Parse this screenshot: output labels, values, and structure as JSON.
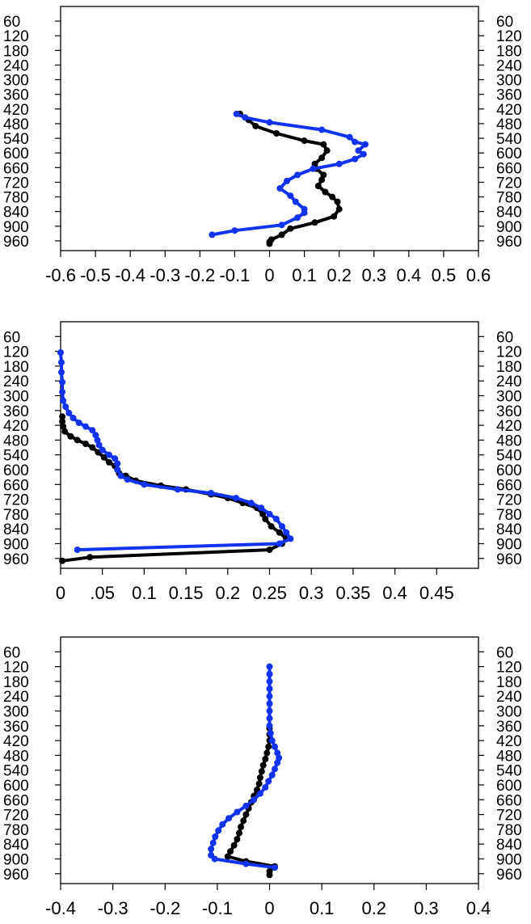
{
  "chart_data": [
    {
      "type": "line",
      "title": "",
      "xlabel": "",
      "ylabel": "",
      "xlim": [
        -0.6,
        0.6
      ],
      "ylim": [
        0,
        1000
      ],
      "y_inverted": true,
      "x_ticks": [
        "-0.6",
        "-0.5",
        "-0.4",
        "-0.3",
        "-0.2",
        "-0.1",
        "0",
        "0.1",
        "0.2",
        "0.3",
        "0.4",
        "0.5",
        "0.6"
      ],
      "x_tick_values": [
        -0.6,
        -0.5,
        -0.4,
        -0.3,
        -0.2,
        -0.1,
        0,
        0.1,
        0.2,
        0.3,
        0.4,
        0.5,
        0.6
      ],
      "y_ticks": [
        "60",
        "120",
        "180",
        "240",
        "300",
        "360",
        "420",
        "480",
        "540",
        "600",
        "660",
        "720",
        "780",
        "840",
        "900",
        "960"
      ],
      "y_tick_values": [
        60,
        120,
        180,
        240,
        300,
        360,
        420,
        480,
        540,
        600,
        660,
        720,
        780,
        840,
        900,
        960
      ],
      "grid": false,
      "series": [
        {
          "color": "#000000",
          "points": [
            [
              -0.085,
              440
            ],
            [
              -0.06,
              465
            ],
            [
              -0.04,
              490
            ],
            [
              0.02,
              520
            ],
            [
              0.1,
              550
            ],
            [
              0.155,
              565
            ],
            [
              0.165,
              590
            ],
            [
              0.15,
              620
            ],
            [
              0.13,
              645
            ],
            [
              0.135,
              665
            ],
            [
              0.155,
              690
            ],
            [
              0.15,
              710
            ],
            [
              0.14,
              735
            ],
            [
              0.16,
              760
            ],
            [
              0.18,
              780
            ],
            [
              0.195,
              800
            ],
            [
              0.2,
              830
            ],
            [
              0.185,
              860
            ],
            [
              0.13,
              885
            ],
            [
              0.06,
              910
            ],
            [
              0.035,
              935
            ],
            [
              0.005,
              955
            ],
            [
              0.0,
              965
            ],
            [
              0.0,
              972
            ]
          ]
        },
        {
          "color": "#1133ee",
          "points": [
            [
              -0.095,
              440
            ],
            [
              -0.07,
              455
            ],
            [
              0.0,
              475
            ],
            [
              0.15,
              505
            ],
            [
              0.23,
              535
            ],
            [
              0.245,
              555
            ],
            [
              0.275,
              565
            ],
            [
              0.255,
              590
            ],
            [
              0.27,
              605
            ],
            [
              0.245,
              625
            ],
            [
              0.2,
              645
            ],
            [
              0.125,
              665
            ],
            [
              0.08,
              690
            ],
            [
              0.05,
              715
            ],
            [
              0.03,
              745
            ],
            [
              0.06,
              775
            ],
            [
              0.075,
              800
            ],
            [
              0.1,
              830
            ],
            [
              0.1,
              845
            ],
            [
              0.08,
              865
            ],
            [
              0.035,
              895
            ],
            [
              -0.1,
              918
            ],
            [
              -0.165,
              935
            ]
          ]
        }
      ]
    },
    {
      "type": "line",
      "title": "",
      "xlabel": "",
      "ylabel": "",
      "xlim": [
        0,
        0.5
      ],
      "ylim": [
        0,
        1000
      ],
      "y_inverted": true,
      "x_ticks": [
        "0",
        ".05",
        "0.1",
        "0.15",
        "0.2",
        "0.25",
        "0.3",
        "0.35",
        "0.4",
        "0.45"
      ],
      "x_tick_values": [
        0,
        0.05,
        0.1,
        0.15,
        0.2,
        0.25,
        0.3,
        0.35,
        0.4,
        0.45
      ],
      "y_ticks": [
        "60",
        "120",
        "180",
        "240",
        "300",
        "360",
        "420",
        "480",
        "540",
        "600",
        "660",
        "720",
        "780",
        "840",
        "900",
        "960"
      ],
      "y_tick_values": [
        60,
        120,
        180,
        240,
        300,
        360,
        420,
        480,
        540,
        600,
        660,
        720,
        780,
        840,
        900,
        960
      ],
      "grid": false,
      "series": [
        {
          "color": "#000000",
          "points": [
            [
              0.002,
              385
            ],
            [
              0.002,
              405
            ],
            [
              0.003,
              425
            ],
            [
              0.005,
              445
            ],
            [
              0.012,
              465
            ],
            [
              0.02,
              480
            ],
            [
              0.03,
              495
            ],
            [
              0.038,
              510
            ],
            [
              0.045,
              530
            ],
            [
              0.052,
              550
            ],
            [
              0.058,
              570
            ],
            [
              0.065,
              585
            ],
            [
              0.068,
              600
            ],
            [
              0.07,
              615
            ],
            [
              0.078,
              625
            ],
            [
              0.09,
              645
            ],
            [
              0.12,
              665
            ],
            [
              0.15,
              680
            ],
            [
              0.18,
              700
            ],
            [
              0.2,
              715
            ],
            [
              0.218,
              735
            ],
            [
              0.235,
              755
            ],
            [
              0.242,
              780
            ],
            [
              0.245,
              800
            ],
            [
              0.252,
              830
            ],
            [
              0.262,
              855
            ],
            [
              0.27,
              880
            ],
            [
              0.265,
              900
            ],
            [
              0.25,
              925
            ],
            [
              0.035,
              955
            ],
            [
              0.002,
              970
            ]
          ]
        },
        {
          "color": "#1133ee",
          "points": [
            [
              0.0,
              125
            ],
            [
              0.001,
              165
            ],
            [
              0.001,
              205
            ],
            [
              0.002,
              245
            ],
            [
              0.002,
              285
            ],
            [
              0.003,
              320
            ],
            [
              0.006,
              345
            ],
            [
              0.01,
              370
            ],
            [
              0.015,
              390
            ],
            [
              0.022,
              410
            ],
            [
              0.03,
              425
            ],
            [
              0.038,
              440
            ],
            [
              0.042,
              460
            ],
            [
              0.044,
              480
            ],
            [
              0.046,
              500
            ],
            [
              0.05,
              520
            ],
            [
              0.058,
              540
            ],
            [
              0.065,
              555
            ],
            [
              0.068,
              575
            ],
            [
              0.068,
              600
            ],
            [
              0.072,
              625
            ],
            [
              0.08,
              640
            ],
            [
              0.1,
              660
            ],
            [
              0.14,
              680
            ],
            [
              0.18,
              695
            ],
            [
              0.21,
              715
            ],
            [
              0.228,
              735
            ],
            [
              0.24,
              755
            ],
            [
              0.25,
              780
            ],
            [
              0.258,
              800
            ],
            [
              0.265,
              830
            ],
            [
              0.27,
              855
            ],
            [
              0.275,
              880
            ],
            [
              0.262,
              900
            ],
            [
              0.02,
              925
            ]
          ]
        }
      ]
    },
    {
      "type": "line",
      "title": "",
      "xlabel": "",
      "ylabel": "",
      "xlim": [
        -0.4,
        0.4
      ],
      "ylim": [
        0,
        1000
      ],
      "y_inverted": true,
      "x_ticks": [
        "-0.4",
        "-0.3",
        "-0.2",
        "-0.1",
        "0",
        "0.1",
        "0.2",
        "0.3",
        "0.4"
      ],
      "x_tick_values": [
        -0.4,
        -0.3,
        -0.2,
        -0.1,
        0,
        0.1,
        0.2,
        0.3,
        0.4
      ],
      "y_ticks": [
        "60",
        "120",
        "180",
        "240",
        "300",
        "360",
        "420",
        "480",
        "540",
        "600",
        "660",
        "720",
        "780",
        "840",
        "900",
        "960"
      ],
      "y_tick_values": [
        60,
        120,
        180,
        240,
        300,
        360,
        420,
        480,
        540,
        600,
        660,
        720,
        780,
        840,
        900,
        960
      ],
      "grid": false,
      "series": [
        {
          "color": "#000000",
          "points": [
            [
              0.0,
              370
            ],
            [
              0.0,
              395
            ],
            [
              0.0,
              420
            ],
            [
              -0.002,
              445
            ],
            [
              -0.005,
              470
            ],
            [
              -0.008,
              495
            ],
            [
              -0.012,
              520
            ],
            [
              -0.015,
              545
            ],
            [
              -0.018,
              570
            ],
            [
              -0.02,
              595
            ],
            [
              -0.024,
              620
            ],
            [
              -0.03,
              645
            ],
            [
              -0.035,
              670
            ],
            [
              -0.04,
              695
            ],
            [
              -0.045,
              720
            ],
            [
              -0.05,
              745
            ],
            [
              -0.055,
              770
            ],
            [
              -0.058,
              795
            ],
            [
              -0.062,
              820
            ],
            [
              -0.068,
              845
            ],
            [
              -0.075,
              870
            ],
            [
              -0.08,
              890
            ],
            [
              -0.045,
              910
            ],
            [
              0.01,
              930
            ],
            [
              0.0,
              950
            ],
            [
              0.0,
              965
            ]
          ]
        },
        {
          "color": "#1133ee",
          "points": [
            [
              0.0,
              120
            ],
            [
              0.0,
              150
            ],
            [
              0.0,
              180
            ],
            [
              0.0,
              210
            ],
            [
              0.0,
              240
            ],
            [
              0.0,
              270
            ],
            [
              0.0,
              300
            ],
            [
              0.0,
              330
            ],
            [
              0.0,
              360
            ],
            [
              0.002,
              390
            ],
            [
              0.005,
              420
            ],
            [
              0.01,
              445
            ],
            [
              0.015,
              470
            ],
            [
              0.018,
              490
            ],
            [
              0.015,
              510
            ],
            [
              0.01,
              535
            ],
            [
              0.005,
              560
            ],
            [
              -0.002,
              585
            ],
            [
              -0.008,
              610
            ],
            [
              -0.018,
              635
            ],
            [
              -0.03,
              660
            ],
            [
              -0.045,
              685
            ],
            [
              -0.062,
              710
            ],
            [
              -0.078,
              735
            ],
            [
              -0.09,
              760
            ],
            [
              -0.098,
              785
            ],
            [
              -0.104,
              810
            ],
            [
              -0.108,
              835
            ],
            [
              -0.112,
              860
            ],
            [
              -0.112,
              885
            ],
            [
              -0.105,
              900
            ],
            [
              -0.045,
              920
            ],
            [
              0.01,
              935
            ]
          ]
        }
      ]
    }
  ]
}
